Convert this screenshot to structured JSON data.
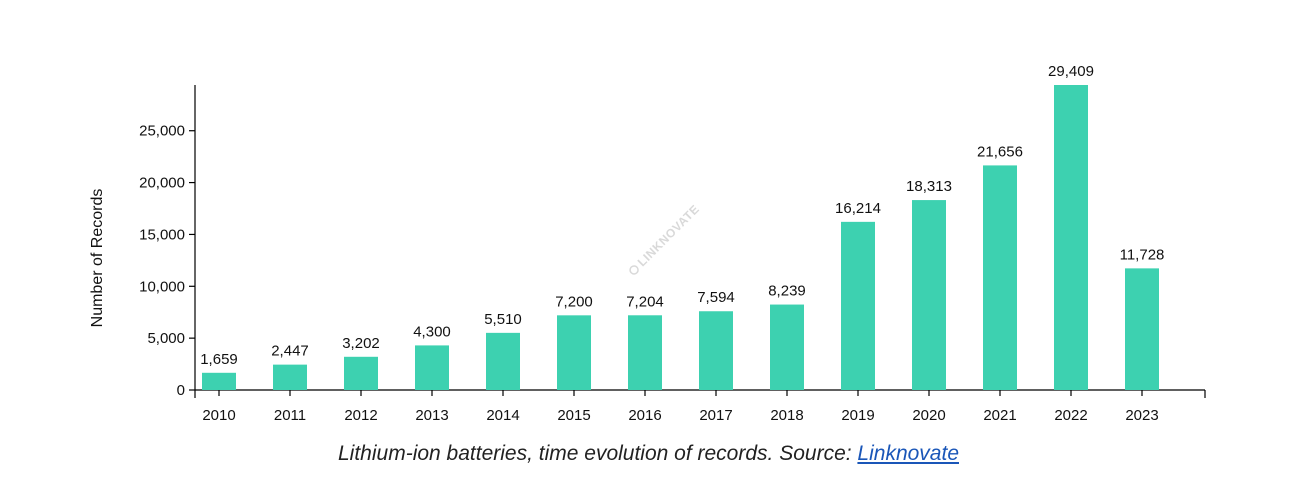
{
  "chart_data": {
    "type": "bar",
    "categories": [
      "2010",
      "2011",
      "2012",
      "2013",
      "2014",
      "2015",
      "2016",
      "2017",
      "2018",
      "2019",
      "2020",
      "2021",
      "2022",
      "2023"
    ],
    "values": [
      1659,
      2447,
      3202,
      4300,
      5510,
      7200,
      7204,
      7594,
      8239,
      16214,
      18313,
      21656,
      29409,
      11728
    ],
    "value_labels": [
      "1,659",
      "2,447",
      "3,202",
      "4,300",
      "5,510",
      "7,200",
      "7,204",
      "7,594",
      "8,239",
      "16,214",
      "18,313",
      "21,656",
      "29,409",
      "11,728"
    ],
    "ylabel": "Number of Records",
    "xlabel": "",
    "ylim": [
      0,
      29409
    ],
    "yticks": [
      0,
      5000,
      10000,
      15000,
      20000,
      25000
    ],
    "ytick_labels": [
      "0",
      "5,000",
      "10,000",
      "15,000",
      "20,000",
      "25,000"
    ],
    "grid": false,
    "bar_color": "#3dd1b0",
    "watermark": "LINKNOVATE"
  },
  "caption": {
    "text": "Lithium-ion batteries, time evolution of records. Source: ",
    "link_text": "Linknovate"
  }
}
